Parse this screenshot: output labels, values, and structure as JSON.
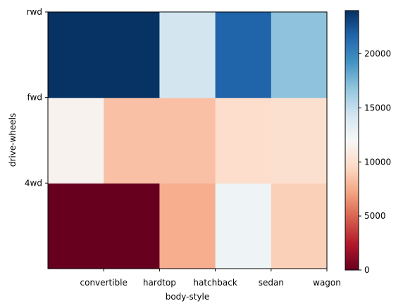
{
  "chart_data": {
    "type": "heatmap",
    "xlabel": "body-style",
    "ylabel": "drive-wheels",
    "x_tick_labels": [
      "convertible",
      "hardtop",
      "hatchback",
      "sedan",
      "wagon"
    ],
    "y_tick_labels": [
      "4wd",
      "fwd",
      "rwd"
    ],
    "rows_bottom_to_top": [
      {
        "values": [
          0,
          0,
          7600,
          12600,
          9100
        ]
      },
      {
        "values": [
          11600,
          8400,
          8400,
          9800,
          10000
        ]
      },
      {
        "values": [
          23900,
          23900,
          14300,
          21700,
          16900
        ]
      }
    ],
    "colorbar": {
      "colormap": "RdBu",
      "min": 0,
      "max": 24000,
      "tick_values": [
        0,
        5000,
        10000,
        15000,
        20000
      ],
      "tick_labels": [
        "0",
        "5000",
        "10000",
        "15000",
        "20000"
      ]
    },
    "grid": false,
    "legend": "none"
  }
}
